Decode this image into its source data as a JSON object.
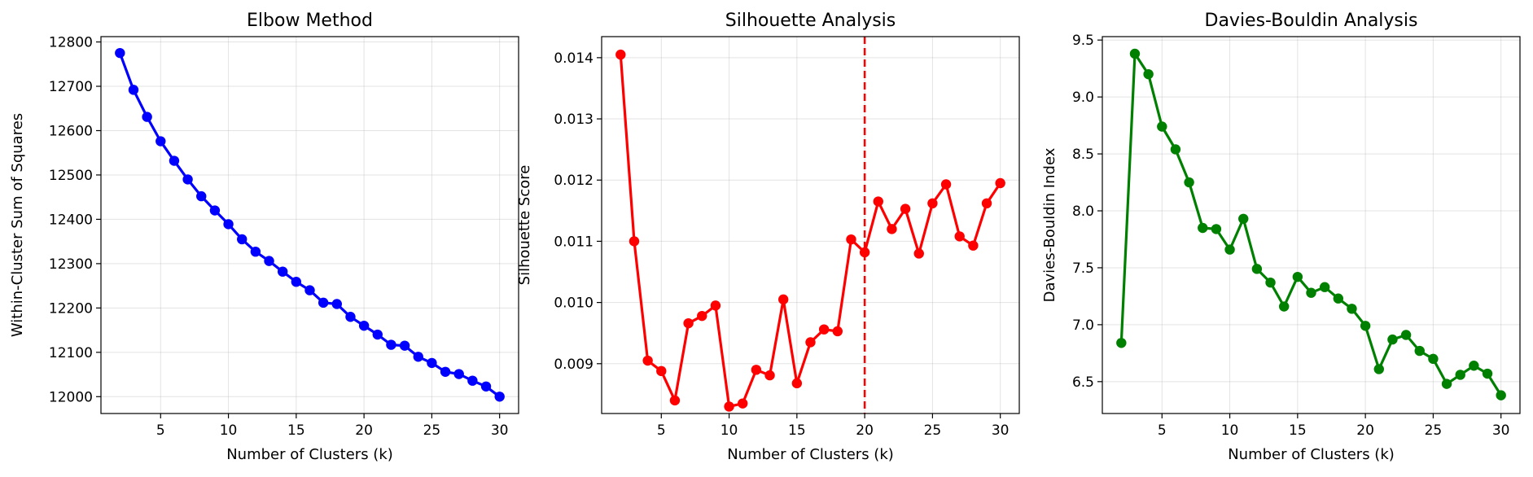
{
  "chart_data": [
    {
      "type": "line",
      "title": "Elbow Method",
      "xlabel": "Number of Clusters (k)",
      "ylabel": "Within-Cluster Sum of Squares",
      "xlim": [
        0.6,
        31.4
      ],
      "ylim": [
        11962,
        12812
      ],
      "xticks": [
        5,
        10,
        15,
        20,
        25,
        30
      ],
      "yticks": [
        12000,
        12100,
        12200,
        12300,
        12400,
        12500,
        12600,
        12700,
        12800
      ],
      "grid": true,
      "color": "#0000ff",
      "series": [
        {
          "x": [
            2,
            3,
            4,
            5,
            6,
            7,
            8,
            9,
            10,
            11,
            12,
            13,
            14,
            15,
            16,
            17,
            18,
            19,
            20,
            21,
            22,
            23,
            24,
            25,
            26,
            27,
            28,
            29,
            30
          ],
          "values": [
            12775,
            12692,
            12631,
            12576,
            12532,
            12490,
            12452,
            12420,
            12389,
            12355,
            12327,
            12306,
            12282,
            12259,
            12240,
            12212,
            12209,
            12180,
            12160,
            12140,
            12117,
            12115,
            12090,
            12076,
            12056,
            12051,
            12036,
            12023,
            12000
          ]
        }
      ]
    },
    {
      "type": "line",
      "title": "Silhouette Analysis",
      "xlabel": "Number of Clusters (k)",
      "ylabel": "Silhouette Score",
      "xlim": [
        0.6,
        31.4
      ],
      "ylim": [
        0.008186,
        0.014344
      ],
      "xticks": [
        5,
        10,
        15,
        20,
        25,
        30
      ],
      "yticks": [
        0.009,
        0.01,
        0.011,
        0.012,
        0.013,
        0.014
      ],
      "ytick_labels": [
        "0.009",
        "0.010",
        "0.011",
        "0.012",
        "0.013",
        "0.014"
      ],
      "grid": true,
      "color": "#ff0000",
      "vline": {
        "x": 20,
        "color": "#ff0000",
        "style": "dashed"
      },
      "series": [
        {
          "x": [
            2,
            3,
            4,
            5,
            6,
            7,
            8,
            9,
            10,
            11,
            12,
            13,
            14,
            15,
            16,
            17,
            18,
            19,
            20,
            21,
            22,
            23,
            24,
            25,
            26,
            27,
            28,
            29,
            30
          ],
          "values": [
            0.01405,
            0.011,
            0.00905,
            0.00888,
            0.0084,
            0.00966,
            0.00978,
            0.00995,
            0.0083,
            0.00835,
            0.0089,
            0.00881,
            0.01005,
            0.00868,
            0.00935,
            0.00956,
            0.00953,
            0.01103,
            0.01082,
            0.01165,
            0.0112,
            0.01153,
            0.0108,
            0.01162,
            0.01193,
            0.01108,
            0.01093,
            0.01162,
            0.01195
          ]
        }
      ]
    },
    {
      "type": "line",
      "title": "Davies-Bouldin Analysis",
      "xlabel": "Number of Clusters (k)",
      "ylabel": "Davies-Bouldin Index",
      "xlim": [
        0.6,
        31.4
      ],
      "ylim": [
        6.22,
        9.53
      ],
      "xticks": [
        5,
        10,
        15,
        20,
        25,
        30
      ],
      "yticks": [
        6.5,
        7.0,
        7.5,
        8.0,
        8.5,
        9.0,
        9.5
      ],
      "ytick_labels": [
        "6.5",
        "7.0",
        "7.5",
        "8.0",
        "8.5",
        "9.0",
        "9.5"
      ],
      "grid": true,
      "color": "#008000",
      "series": [
        {
          "x": [
            2,
            3,
            4,
            5,
            6,
            7,
            8,
            9,
            10,
            11,
            12,
            13,
            14,
            15,
            16,
            17,
            18,
            19,
            20,
            21,
            22,
            23,
            24,
            25,
            26,
            27,
            28,
            29,
            30
          ],
          "values": [
            6.84,
            9.38,
            9.2,
            8.74,
            8.54,
            8.25,
            7.85,
            7.84,
            7.66,
            7.93,
            7.49,
            7.37,
            7.16,
            7.42,
            7.28,
            7.33,
            7.23,
            7.14,
            6.99,
            6.61,
            6.87,
            6.91,
            6.77,
            6.7,
            6.48,
            6.56,
            6.64,
            6.57,
            6.38
          ]
        }
      ]
    }
  ]
}
